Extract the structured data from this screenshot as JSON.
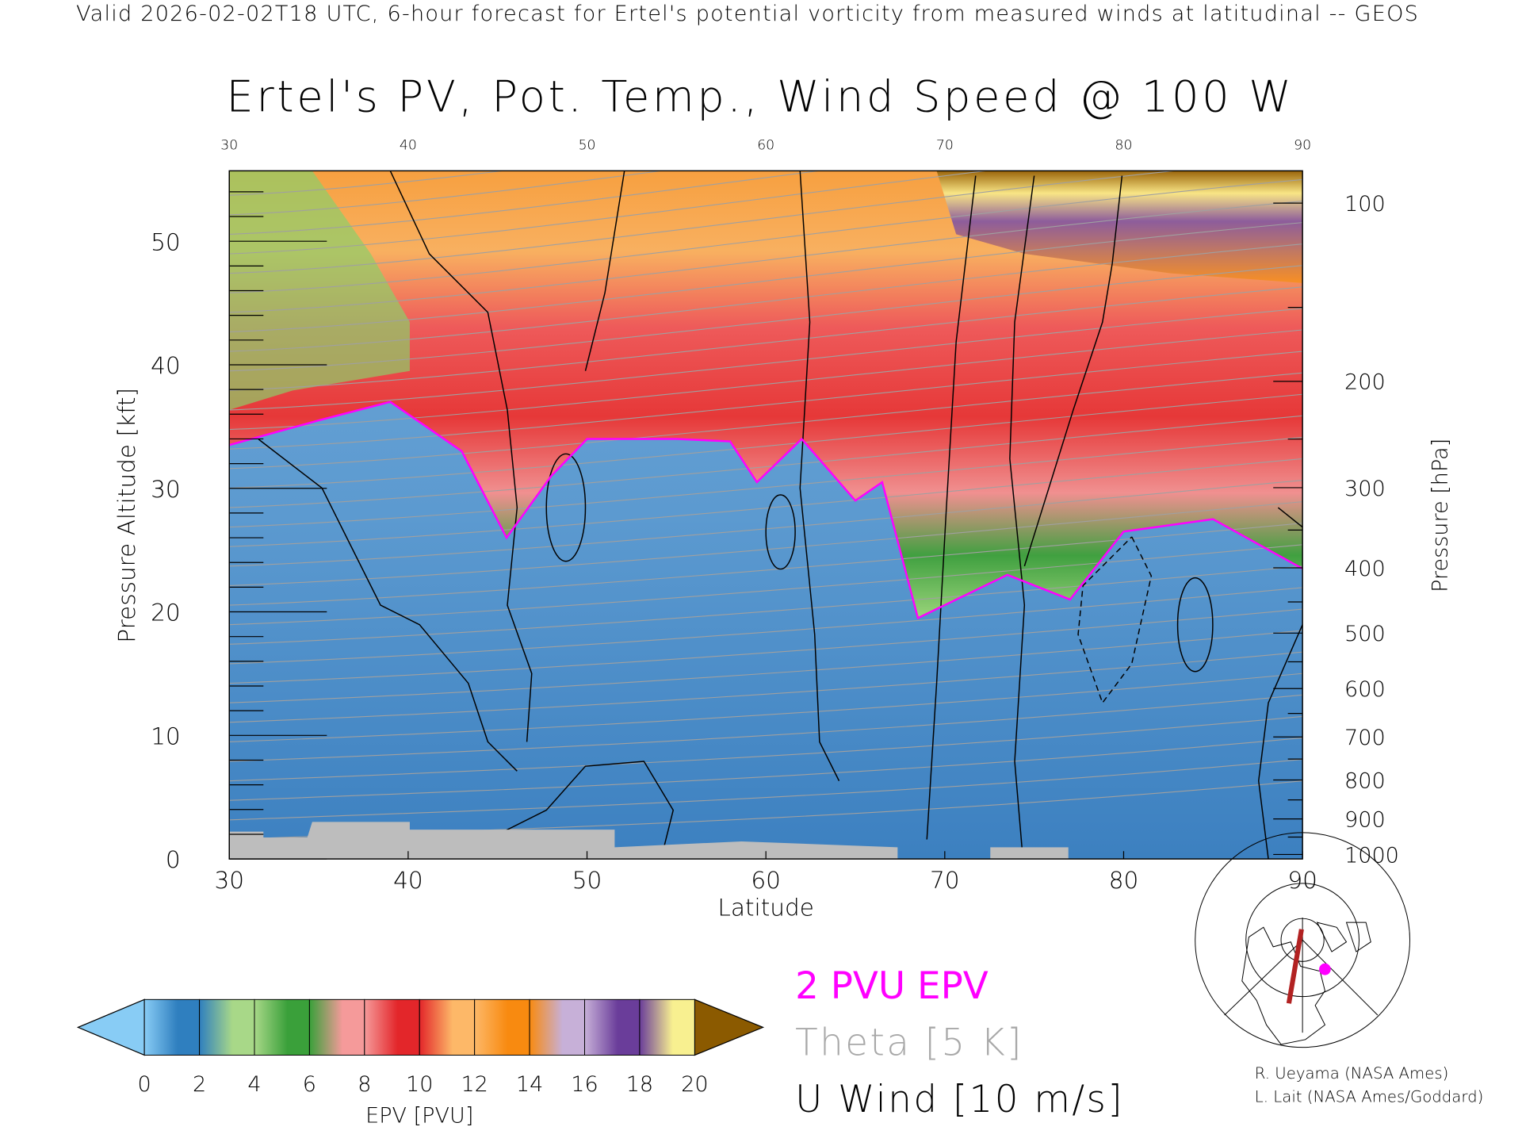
{
  "header": "Valid 2026-02-02T18 UTC, 6-hour forecast for Ertel's potential vorticity from measured winds at latitudinal -- GEOS",
  "chart_data": {
    "type": "heatmap",
    "title": "Ertel's PV, Pot. Temp., Wind Speed @ 100 W",
    "xlabel": "Latitude",
    "ylabel": "Pressure Altitude [kft]",
    "ylabel_right": "Pressure [hPa]",
    "xlim": [
      30,
      90
    ],
    "ylim": [
      0,
      55.7
    ],
    "x_ticks": [
      "30",
      "40",
      "50",
      "60",
      "70",
      "80",
      "90"
    ],
    "x_ticks_top": [
      "30",
      "40",
      "50",
      "60",
      "70",
      "80",
      "90"
    ],
    "y_ticks": [
      "0",
      "10",
      "20",
      "30",
      "40",
      "50"
    ],
    "y_ticks_right": [
      "100",
      "200",
      "300",
      "400",
      "500",
      "600",
      "700",
      "800",
      "900",
      "1000"
    ],
    "colorbar": {
      "label": "EPV [PVU]",
      "ticks": [
        "0",
        "2",
        "4",
        "6",
        "8",
        "10",
        "12",
        "14",
        "16",
        "18",
        "20"
      ],
      "colors": [
        "#2f7fbf",
        "#a8d888",
        "#3aa03a",
        "#f59a9a",
        "#e3262a",
        "#fdb868",
        "#f88a10",
        "#c7b0d8",
        "#6a3d9a",
        "#f8f090"
      ],
      "under_color": "#88ccf5",
      "over_color": "#8b5a00"
    },
    "tropopause_2pvu_kft": [
      [
        30,
        33.5
      ],
      [
        35,
        35.5
      ],
      [
        39,
        37
      ],
      [
        43,
        33
      ],
      [
        45.5,
        26
      ],
      [
        48,
        31
      ],
      [
        50,
        34
      ],
      [
        55,
        34
      ],
      [
        58,
        33.8
      ],
      [
        59.5,
        30.5
      ],
      [
        62,
        34
      ],
      [
        65,
        29
      ],
      [
        66.5,
        30.5
      ],
      [
        68.5,
        19.5
      ],
      [
        73.5,
        23
      ],
      [
        77,
        21
      ],
      [
        80,
        26.5
      ],
      [
        85,
        27.5
      ],
      [
        90,
        23.5
      ]
    ],
    "legend": {
      "pv": "2 PVU EPV",
      "theta": "Theta [5 K]",
      "wind": "U Wind [10 m/s]",
      "pv_color": "#ff00ff",
      "theta_color": "#a8a8a8",
      "wind_color": "#000000"
    },
    "credits": [
      "R. Ueyama (NASA Ames)",
      "L. Lait (NASA Ames/Goddard)"
    ]
  }
}
